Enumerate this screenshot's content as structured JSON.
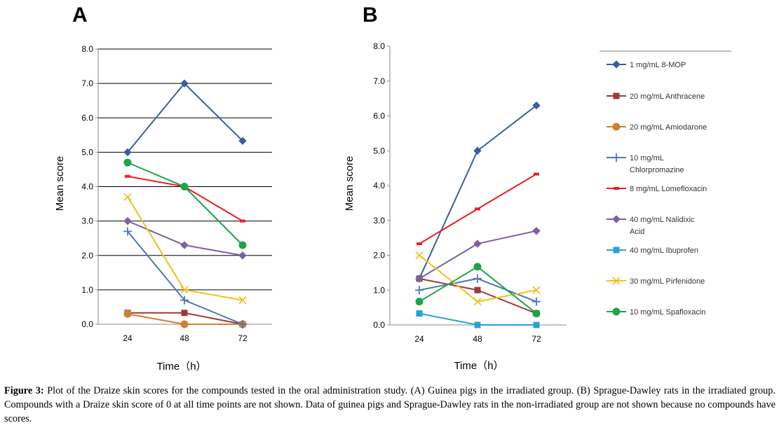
{
  "legend": [
    {
      "label": "1 mg/mL 8-MOP",
      "color": "#3b5e9a",
      "marker": "diamond"
    },
    {
      "label": "20 mg/mL Anthracene",
      "color": "#9b3b38",
      "marker": "square"
    },
    {
      "label": "20 mg/mL Amiodarone",
      "color": "#d07f30",
      "marker": "circle"
    },
    {
      "label": "10 mg/mL Chlorpromazine",
      "color": "#4a7ab8",
      "marker": "plus"
    },
    {
      "label": "8 mg/mL Lomefloxacin",
      "color": "#e82020",
      "marker": "dash"
    },
    {
      "label": "40 mg/mL Nalidixic Acid",
      "color": "#7e5fa2",
      "marker": "diamond"
    },
    {
      "label": "40 mg/mL Ibuprofen",
      "color": "#2aa0d8",
      "marker": "square"
    },
    {
      "label": "30 mg/mL Pirfenidone",
      "color": "#f0c020",
      "marker": "x"
    },
    {
      "label": "10 mg/mL Spafloxacin",
      "color": "#1ea44a",
      "marker": "circle"
    }
  ],
  "chart_data": [
    {
      "panel": "A",
      "type": "line",
      "x": [
        "24",
        "48",
        "72"
      ],
      "xlabel": "Time（h）",
      "ylabel": "Mean score",
      "ylim": [
        0,
        8
      ],
      "yticks": [
        "0.0",
        "1.0",
        "2.0",
        "3.0",
        "4.0",
        "5.0",
        "6.0",
        "7.0",
        "8.0"
      ],
      "grid": true,
      "series": [
        {
          "name": "1 mg/mL 8-MOP",
          "values": [
            5.0,
            7.0,
            5.33
          ]
        },
        {
          "name": "20 mg/mL Anthracene",
          "values": [
            0.33,
            0.33,
            0.0
          ]
        },
        {
          "name": "20 mg/mL Amiodarone",
          "values": [
            0.3,
            0.0,
            0.0
          ]
        },
        {
          "name": "10 mg/mL Chlorpromazine",
          "values": [
            2.7,
            0.7,
            0.0
          ]
        },
        {
          "name": "8 mg/mL Lomefloxacin",
          "values": [
            4.3,
            4.0,
            3.0
          ]
        },
        {
          "name": "40 mg/mL Nalidixic Acid",
          "values": [
            3.0,
            2.3,
            2.0
          ]
        },
        {
          "name": "30 mg/mL Pirfenidone",
          "values": [
            3.7,
            1.0,
            0.7
          ]
        },
        {
          "name": "10 mg/mL Spafloxacin",
          "values": [
            4.7,
            4.0,
            2.3
          ]
        }
      ]
    },
    {
      "panel": "B",
      "type": "line",
      "x": [
        "24",
        "48",
        "72"
      ],
      "xlabel": "Time（h）",
      "ylabel": "Mean score",
      "ylim": [
        0,
        8
      ],
      "yticks": [
        "0.0",
        "1.0",
        "2.0",
        "3.0",
        "4.0",
        "5.0",
        "6.0",
        "7.0",
        "8.0"
      ],
      "grid": false,
      "series": [
        {
          "name": "1 mg/mL 8-MOP",
          "values": [
            1.33,
            5.0,
            6.3
          ]
        },
        {
          "name": "20 mg/mL Anthracene",
          "values": [
            1.33,
            1.0,
            0.33
          ]
        },
        {
          "name": "10 mg/mL Chlorpromazine",
          "values": [
            1.0,
            1.33,
            0.67
          ]
        },
        {
          "name": "8 mg/mL Lomefloxacin",
          "values": [
            2.33,
            3.33,
            4.33
          ]
        },
        {
          "name": "40 mg/mL Nalidixic Acid",
          "values": [
            1.33,
            2.33,
            2.7
          ]
        },
        {
          "name": "40 mg/mL Ibuprofen",
          "values": [
            0.33,
            0.0,
            0.0
          ]
        },
        {
          "name": "30 mg/mL Pirfenidone",
          "values": [
            2.0,
            0.67,
            1.0
          ]
        },
        {
          "name": "10 mg/mL Spafloxacin",
          "values": [
            0.67,
            1.67,
            0.33
          ]
        }
      ]
    }
  ],
  "caption": {
    "label": "Figure 3:",
    "text": " Plot of the Draize skin scores for the compounds tested in the oral administration study. (A) Guinea pigs in the irradiated group. (B) Sprague-Dawley rats in the irradiated group. Compounds with a Draize skin score of 0 at all time points are not shown. Data of guinea pigs and Sprague-Dawley rats in the non-irradiated group are not shown because no compounds have scores."
  }
}
